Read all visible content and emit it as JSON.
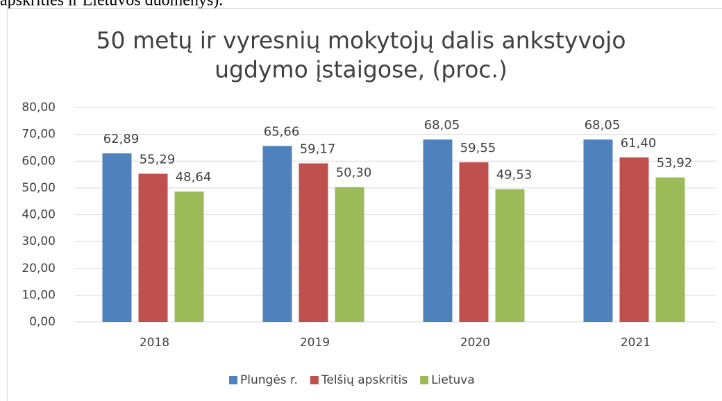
{
  "page_text": "apskrities ir Lietuvos duomenys).",
  "chart_data": {
    "type": "bar",
    "title": [
      "50 metų ir vyresnių mokytojų dalis ankstyvojo",
      "ugdymo įstaigose, (proc.)"
    ],
    "categories": [
      "2018",
      "2019",
      "2020",
      "2021"
    ],
    "series": [
      {
        "name": "Plungės r.",
        "color": "#4f81bd",
        "values": [
          62.89,
          65.66,
          68.05,
          68.05
        ],
        "value_labels": [
          "62,89",
          "65,66",
          "68,05",
          "68,05"
        ]
      },
      {
        "name": "Telšių apskritis",
        "color": "#c0504d",
        "values": [
          55.29,
          59.17,
          59.55,
          61.4
        ],
        "value_labels": [
          "55,29",
          "59,17",
          "59,55",
          "61,40"
        ]
      },
      {
        "name": "Lietuva",
        "color": "#9bbb59",
        "values": [
          48.64,
          50.3,
          49.53,
          53.92
        ],
        "value_labels": [
          "48,64",
          "50,30",
          "49,53",
          "53,92"
        ]
      }
    ],
    "ylim": [
      0,
      80
    ],
    "yticks": [
      {
        "value": 0,
        "label": "0,00"
      },
      {
        "value": 10,
        "label": "10,00"
      },
      {
        "value": 20,
        "label": "20,00"
      },
      {
        "value": 30,
        "label": "30,00"
      },
      {
        "value": 40,
        "label": "40,00"
      },
      {
        "value": 50,
        "label": "50,00"
      },
      {
        "value": 60,
        "label": "60,00"
      },
      {
        "value": 70,
        "label": "70,00"
      },
      {
        "value": 80,
        "label": "80,00"
      }
    ],
    "grid": true,
    "legend": "bottom"
  }
}
